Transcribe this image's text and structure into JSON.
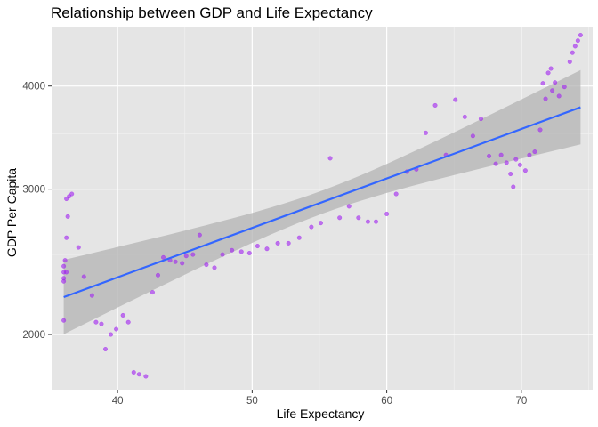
{
  "chart_data": {
    "type": "scatter",
    "title": "Relationship between GDP and Life Expectancy",
    "xlabel": "Life Expectancy",
    "ylabel": "GDP Per Capita",
    "xlim": [
      35.1,
      75.3
    ],
    "ylim": [
      1715,
      4720
    ],
    "y_scale": "log10",
    "x_ticks": [
      40,
      50,
      60,
      70
    ],
    "x_tick_labels": [
      "40",
      "50",
      "60",
      "70"
    ],
    "x_minor_ticks": [
      35,
      45,
      55,
      65,
      75
    ],
    "y_ticks": [
      2000,
      3000,
      4000
    ],
    "y_tick_labels": [
      "2000",
      "3000",
      "4000"
    ],
    "y_minor_ticks": [
      2500,
      3500
    ],
    "grid": true,
    "background_color": "#e5e5e5",
    "point_color": "#a020f0",
    "line_color": "#3366ff",
    "band_color": "#b3b3b3",
    "series": [
      {
        "name": "data",
        "points": [
          [
            36.0,
            2080
          ],
          [
            36.0,
            2320
          ],
          [
            36.0,
            2340
          ],
          [
            36.0,
            2380
          ],
          [
            36.0,
            2420
          ],
          [
            36.1,
            2460
          ],
          [
            36.2,
            2380
          ],
          [
            36.2,
            2620
          ],
          [
            36.2,
            2920
          ],
          [
            36.3,
            2780
          ],
          [
            36.4,
            2940
          ],
          [
            36.6,
            2960
          ],
          [
            37.1,
            2550
          ],
          [
            37.5,
            2350
          ],
          [
            38.1,
            2230
          ],
          [
            38.4,
            2070
          ],
          [
            38.8,
            2060
          ],
          [
            39.1,
            1920
          ],
          [
            39.5,
            2000
          ],
          [
            39.9,
            2030
          ],
          [
            40.4,
            2110
          ],
          [
            40.8,
            2070
          ],
          [
            41.2,
            1800
          ],
          [
            41.6,
            1790
          ],
          [
            42.1,
            1780
          ],
          [
            42.6,
            2250
          ],
          [
            43.0,
            2360
          ],
          [
            43.4,
            2480
          ],
          [
            43.9,
            2460
          ],
          [
            44.3,
            2450
          ],
          [
            44.8,
            2440
          ],
          [
            45.1,
            2490
          ],
          [
            45.6,
            2500
          ],
          [
            46.1,
            2640
          ],
          [
            46.6,
            2430
          ],
          [
            47.2,
            2410
          ],
          [
            47.8,
            2500
          ],
          [
            48.5,
            2530
          ],
          [
            49.2,
            2520
          ],
          [
            49.8,
            2510
          ],
          [
            50.4,
            2560
          ],
          [
            51.1,
            2540
          ],
          [
            51.9,
            2580
          ],
          [
            52.7,
            2580
          ],
          [
            53.5,
            2620
          ],
          [
            54.4,
            2700
          ],
          [
            55.1,
            2730
          ],
          [
            55.8,
            3270
          ],
          [
            56.5,
            2770
          ],
          [
            57.2,
            2860
          ],
          [
            57.9,
            2770
          ],
          [
            58.6,
            2740
          ],
          [
            59.2,
            2740
          ],
          [
            60.0,
            2800
          ],
          [
            60.7,
            2960
          ],
          [
            61.5,
            3150
          ],
          [
            62.2,
            3170
          ],
          [
            62.9,
            3510
          ],
          [
            63.6,
            3790
          ],
          [
            64.4,
            3300
          ],
          [
            65.1,
            3850
          ],
          [
            65.8,
            3670
          ],
          [
            66.4,
            3480
          ],
          [
            67.0,
            3650
          ],
          [
            67.6,
            3290
          ],
          [
            68.1,
            3220
          ],
          [
            68.5,
            3300
          ],
          [
            68.9,
            3230
          ],
          [
            69.2,
            3130
          ],
          [
            69.4,
            3020
          ],
          [
            69.6,
            3260
          ],
          [
            69.9,
            3210
          ],
          [
            70.3,
            3160
          ],
          [
            70.6,
            3300
          ],
          [
            71.0,
            3330
          ],
          [
            71.4,
            3540
          ],
          [
            71.6,
            4030
          ],
          [
            71.8,
            3860
          ],
          [
            72.0,
            4150
          ],
          [
            72.2,
            4200
          ],
          [
            72.3,
            3950
          ],
          [
            72.5,
            4040
          ],
          [
            72.8,
            3890
          ],
          [
            73.2,
            3990
          ],
          [
            73.6,
            4280
          ],
          [
            73.8,
            4390
          ],
          [
            74.0,
            4470
          ],
          [
            74.2,
            4540
          ],
          [
            74.4,
            4610
          ]
        ]
      }
    ],
    "trend_line": {
      "method": "lm",
      "x_range": [
        36.0,
        74.4
      ],
      "y_at_start": 2220,
      "y_at_end": 3770,
      "band_half_width_ends": 0.045,
      "band_half_width_center": 0.014
    }
  }
}
